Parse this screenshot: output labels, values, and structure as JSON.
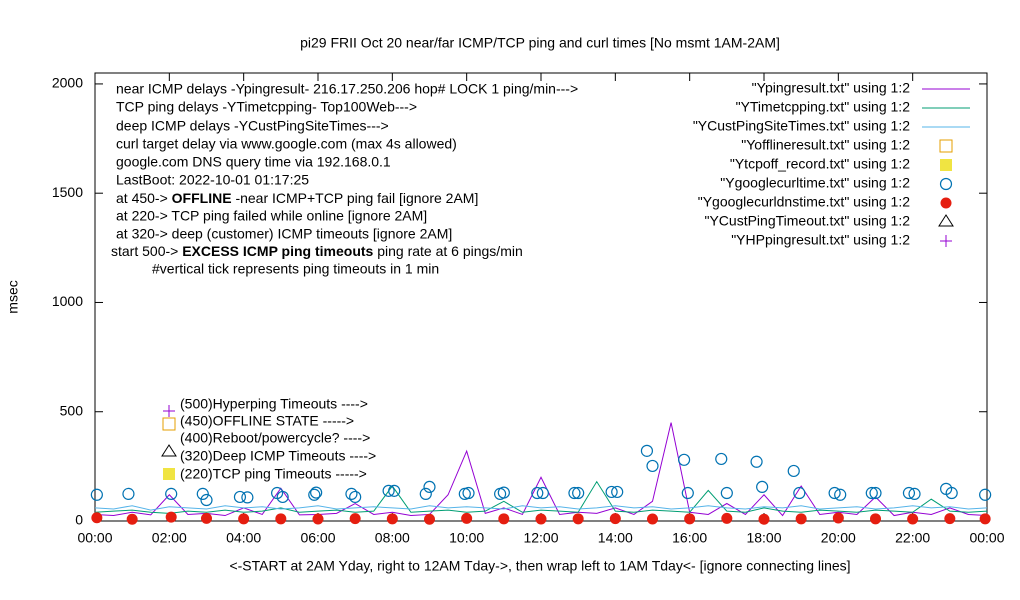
{
  "chart_data": {
    "type": "line",
    "title": "pi29 FRII Oct 20  near/far ICMP/TCP ping and curl times [No msmt 1AM-2AM]",
    "ylabel": "msec",
    "xlabel": "<-START at 2AM Yday, right to 12AM Tday->, then wrap left to 1AM Tday<- [ignore connecting lines]",
    "xlim": [
      0,
      24
    ],
    "ylim": [
      0,
      2050
    ],
    "yticks": [
      0,
      500,
      1000,
      1500,
      2000
    ],
    "xticks": [
      {
        "value": 0,
        "label": "00:00"
      },
      {
        "value": 2,
        "label": "02:00"
      },
      {
        "value": 4,
        "label": "04:00"
      },
      {
        "value": 6,
        "label": "06:00"
      },
      {
        "value": 8,
        "label": "08:00"
      },
      {
        "value": 10,
        "label": "10:00"
      },
      {
        "value": 12,
        "label": "12:00"
      },
      {
        "value": 14,
        "label": "14:00"
      },
      {
        "value": 16,
        "label": "16:00"
      },
      {
        "value": 18,
        "label": "18:00"
      },
      {
        "value": 20,
        "label": "20:00"
      },
      {
        "value": 22,
        "label": "22:00"
      },
      {
        "value": 24,
        "label": "00:00"
      }
    ],
    "annotations": [
      [
        "near ICMP delays -Ypingresult- 216.17.250.206 hop# LOCK 1 ping/min--->"
      ],
      [
        "TCP ping delays -YTimetcpping- Top100Web--->"
      ],
      [
        "deep ICMP delays -YCustPingSiteTimes--->"
      ],
      [
        "curl target delay via www.google.com (max 4s allowed)"
      ],
      [
        "google.com DNS query time via 192.168.0.1"
      ],
      [
        "LastBoot: 2022-10-01 01:17:25"
      ],
      [
        "at 450->",
        "OFFLINE",
        "-near ICMP+TCP ping fail [ignore 2AM]"
      ],
      [
        "at 220-> TCP ping failed while online [ignore 2AM]"
      ],
      [
        "at 320-> deep (customer) ICMP timeouts [ignore 2AM]"
      ],
      [
        "start 500->",
        "EXCESS ICMP ping timeouts",
        "ping rate at 6 pings/min"
      ],
      [
        "#vertical tick represents ping timeouts in 1 min"
      ]
    ],
    "key_notes": [
      "(500)Hyperping Timeouts ---->",
      "(450)OFFLINE STATE ----->",
      "(400)Reboot/powercycle? ---->",
      "(320)Deep ICMP Timeouts ---->",
      "(220)TCP ping Timeouts ----->"
    ],
    "series": [
      {
        "name": "\"Ypingresult.txt\" using 1:2",
        "color": "#9400d3",
        "marker": "line",
        "x": [
          0,
          0.5,
          1,
          1.5,
          2,
          2.5,
          3,
          3.5,
          4,
          4.5,
          5,
          5.5,
          6,
          6.5,
          7,
          7.5,
          8,
          8.5,
          9,
          9.5,
          10,
          10.5,
          11,
          11.5,
          12,
          12.5,
          13,
          13.5,
          14,
          14.5,
          15,
          15.5,
          16,
          16.5,
          17,
          17.5,
          18,
          18.5,
          19,
          19.5,
          20,
          20.5,
          21,
          21.5,
          22,
          22.5,
          23,
          23.5,
          24
        ],
        "values": [
          30,
          25,
          40,
          28,
          120,
          30,
          35,
          25,
          60,
          30,
          150,
          28,
          30,
          35,
          80,
          30,
          40,
          25,
          30,
          120,
          320,
          35,
          60,
          30,
          200,
          30,
          40,
          35,
          60,
          30,
          90,
          450,
          40,
          30,
          80,
          30,
          120,
          25,
          160,
          30,
          40,
          30,
          110,
          25,
          40,
          30,
          60,
          30,
          25
        ]
      },
      {
        "name": "\"YTimetcpping.txt\" using 1:2",
        "color": "#009e73",
        "marker": "line",
        "x": [
          0,
          0.5,
          1,
          1.5,
          2,
          2.5,
          3,
          3.5,
          4,
          4.5,
          5,
          5.5,
          6,
          6.5,
          7,
          7.5,
          8,
          8.5,
          9,
          9.5,
          10,
          10.5,
          11,
          11.5,
          12,
          12.5,
          13,
          13.5,
          14,
          14.5,
          15,
          15.5,
          16,
          16.5,
          17,
          17.5,
          18,
          18.5,
          19,
          19.5,
          20,
          20.5,
          21,
          21.5,
          22,
          22.5,
          23,
          23.5,
          24
        ],
        "values": [
          40,
          45,
          50,
          40,
          35,
          45,
          40,
          50,
          40,
          45,
          60,
          40,
          45,
          50,
          40,
          45,
          160,
          40,
          45,
          50,
          40,
          45,
          90,
          40,
          50,
          45,
          40,
          180,
          45,
          40,
          50,
          45,
          40,
          140,
          45,
          40,
          60,
          45,
          40,
          50,
          45,
          40,
          50,
          45,
          40,
          100,
          45,
          40,
          45
        ]
      },
      {
        "name": "\"YCustPingSiteTimes.txt\" using 1:2",
        "color": "#56b4e9",
        "marker": "line",
        "x": [
          0,
          0.5,
          1,
          1.5,
          2,
          2.5,
          3,
          3.5,
          4,
          4.5,
          5,
          5.5,
          6,
          6.5,
          7,
          7.5,
          8,
          8.5,
          9,
          9.5,
          10,
          10.5,
          11,
          11.5,
          12,
          12.5,
          13,
          13.5,
          14,
          14.5,
          15,
          15.5,
          16,
          16.5,
          17,
          17.5,
          18,
          18.5,
          19,
          19.5,
          20,
          20.5,
          21,
          21.5,
          22,
          22.5,
          23,
          23.5,
          24
        ],
        "values": [
          60,
          55,
          70,
          50,
          65,
          60,
          55,
          70,
          60,
          65,
          55,
          60,
          70,
          55,
          60,
          65,
          60,
          55,
          70,
          60,
          65,
          60,
          55,
          70,
          60,
          65,
          55,
          60,
          70,
          60,
          65,
          55,
          60,
          70,
          60,
          55,
          65,
          60,
          70,
          55,
          60,
          65,
          55,
          60,
          70,
          60,
          65,
          55,
          60
        ]
      },
      {
        "name": "\"Yofflineresult.txt\" using 1:2",
        "color": "#e69f00",
        "marker": "open-square",
        "x": [],
        "values": []
      },
      {
        "name": "\"Ytcpoff_record.txt\" using 1:2",
        "color": "#f0e442",
        "marker": "filled-square",
        "x": [],
        "values": []
      },
      {
        "name": "\"Ygooglecurltime.txt\" using 1:2",
        "color": "#0072b2",
        "marker": "open-circle",
        "x": [
          0.05,
          0.9,
          2.05,
          2.9,
          3.0,
          3.9,
          4.1,
          4.9,
          5.05,
          5.9,
          5.95,
          6.9,
          7.0,
          7.9,
          8.05,
          8.9,
          9.0,
          9.95,
          10.05,
          10.9,
          11.0,
          11.9,
          12.05,
          12.9,
          13.0,
          13.9,
          14.05,
          14.85,
          15.0,
          15.85,
          15.95,
          16.85,
          17.0,
          17.8,
          17.95,
          18.8,
          18.95,
          19.9,
          20.05,
          20.9,
          21.0,
          21.9,
          22.05,
          22.9,
          23.05,
          23.95
        ],
        "values": [
          120,
          124,
          124,
          124,
          96,
          110,
          108,
          128,
          110,
          120,
          130,
          124,
          110,
          138,
          138,
          124,
          156,
          124,
          128,
          124,
          130,
          128,
          128,
          128,
          128,
          133,
          133,
          321,
          252,
          280,
          128,
          284,
          128,
          271,
          156,
          229,
          128,
          128,
          120,
          128,
          128,
          128,
          124,
          147,
          128,
          120
        ]
      },
      {
        "name": "\"Ygooglecurldnstime.txt\" using 1:2",
        "color": "#e51e10",
        "marker": "filled-circle",
        "x": [
          0.05,
          1.0,
          2.05,
          3.0,
          4.0,
          5.0,
          6.0,
          7.0,
          8.0,
          9.0,
          10.0,
          11.0,
          12.0,
          13.0,
          14.0,
          15.0,
          16.0,
          17.0,
          18.0,
          19.0,
          20.0,
          21.0,
          22.0,
          23.0,
          23.95
        ],
        "values": [
          15,
          8,
          18,
          12,
          10,
          10,
          9,
          11,
          10,
          8,
          12,
          10,
          9,
          10,
          11,
          9,
          10,
          12,
          8,
          10,
          14,
          10,
          9,
          11,
          10
        ]
      },
      {
        "name": "\"YCustPingTimeout.txt\" using 1:2",
        "color": "#000000",
        "marker": "open-triangle",
        "x": [],
        "values": []
      },
      {
        "name": "\"YHPpingresult.txt\" using 1:2",
        "color": "#9400d3",
        "marker": "plus",
        "x": [],
        "values": []
      }
    ]
  }
}
